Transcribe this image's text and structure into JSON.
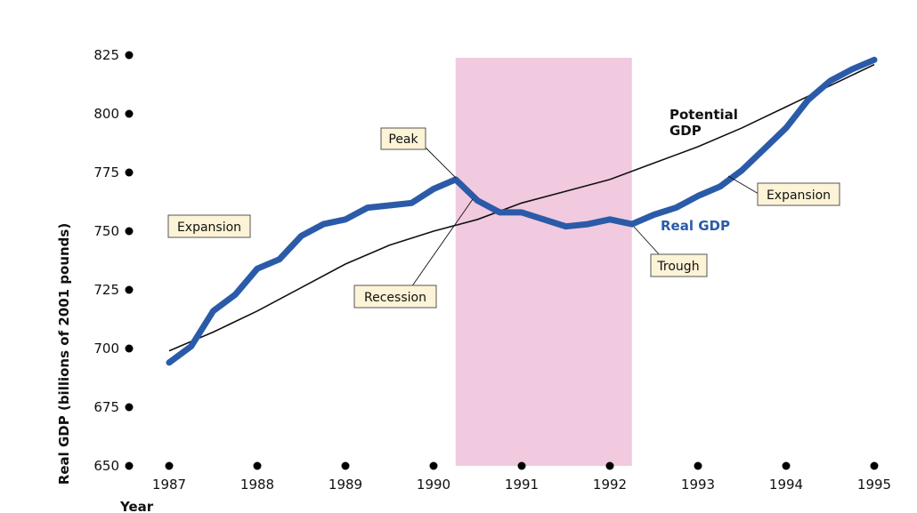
{
  "chart_data": {
    "type": "line",
    "xlabel": "Year",
    "ylabel": "Real GDP (billions of 2001 pounds)",
    "xlim": [
      1987,
      1995
    ],
    "ylim": [
      650,
      825
    ],
    "x_ticks": [
      "1987",
      "1988",
      "1989",
      "1990",
      "1991",
      "1992",
      "1993",
      "1994",
      "1995"
    ],
    "y_ticks": [
      "650",
      "675",
      "700",
      "725",
      "750",
      "775",
      "800",
      "825"
    ],
    "grid": false,
    "recession_shade": [
      1990.25,
      1992.25
    ],
    "colors": {
      "real_gdp": "#2b5ba8",
      "potential_gdp": "#111111",
      "shade": "#f1cadf",
      "callout_fill": "#fdf3d6"
    },
    "series": [
      {
        "name": "Real GDP",
        "x": [
          1987.0,
          1987.25,
          1987.5,
          1987.75,
          1988.0,
          1988.25,
          1988.5,
          1988.75,
          1989.0,
          1989.25,
          1989.5,
          1989.75,
          1990.0,
          1990.25,
          1990.5,
          1990.75,
          1991.0,
          1991.25,
          1991.5,
          1991.75,
          1992.0,
          1992.25,
          1992.5,
          1992.75,
          1993.0,
          1993.25,
          1993.5,
          1993.75,
          1994.0,
          1994.25,
          1994.5,
          1994.75,
          1995.0
        ],
        "values": [
          694,
          701,
          716,
          723,
          734,
          738,
          748,
          753,
          755,
          760,
          761,
          762,
          768,
          772,
          763,
          758,
          758,
          755,
          752,
          753,
          755,
          753,
          757,
          760,
          765,
          769,
          776,
          785,
          794,
          806,
          814,
          819,
          823
        ]
      },
      {
        "name": "Potential GDP",
        "x": [
          1987.0,
          1987.5,
          1988.0,
          1988.5,
          1989.0,
          1989.5,
          1990.0,
          1990.5,
          1991.0,
          1991.5,
          1992.0,
          1992.5,
          1993.0,
          1993.5,
          1994.0,
          1994.5,
          1995.0
        ],
        "values": [
          699,
          707,
          716,
          726,
          736,
          744,
          750,
          755,
          762,
          767,
          772,
          779,
          786,
          794,
          803,
          812,
          821
        ]
      }
    ],
    "annotations": {
      "potential_gdp_line1": "Potential",
      "potential_gdp_line2": "GDP",
      "real_gdp": "Real GDP",
      "expansion_left": "Expansion",
      "peak": "Peak",
      "recession": "Recession",
      "trough": "Trough",
      "expansion_right": "Expansion"
    }
  }
}
